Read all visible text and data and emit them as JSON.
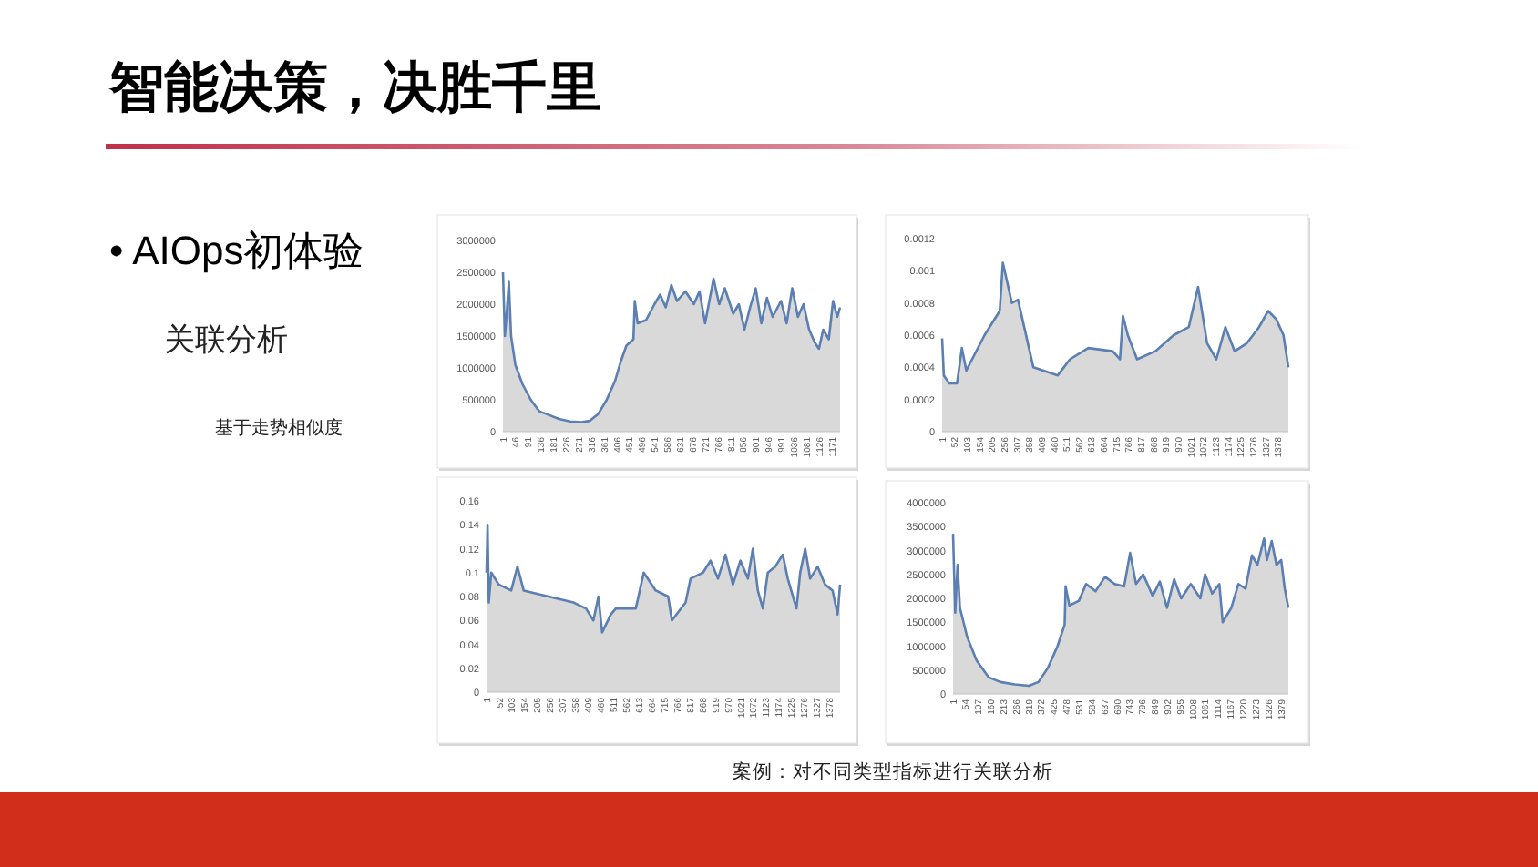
{
  "chart_data": [
    {
      "type": "other",
      "title": "智能决策，决胜千里",
      "annotations": [
        "• AIOps初体验",
        "关联分析",
        "基于走势相似度",
        "案例：对不同类型指标进行关联分析"
      ]
    },
    {
      "type": "area",
      "color": "#5b7fb2",
      "x": [
        1,
        8,
        15,
        22,
        30,
        45,
        70,
        100,
        130,
        160,
        200,
        240,
        280,
        310,
        340,
        370,
        400,
        420,
        440,
        465,
        470,
        480,
        510,
        540,
        560,
        580,
        600,
        620,
        650,
        680,
        700,
        720,
        750,
        770,
        790,
        820,
        840,
        860,
        880,
        900,
        920,
        940,
        960,
        990,
        1010,
        1030,
        1050,
        1070,
        1090,
        1110,
        1125,
        1140,
        1160,
        1175,
        1190,
        1200
      ],
      "values": [
        2500000,
        1500000,
        1900000,
        2350000,
        1500000,
        1050000,
        750000,
        500000,
        320000,
        270000,
        200000,
        160000,
        150000,
        170000,
        280000,
        500000,
        800000,
        1100000,
        1350000,
        1450000,
        2050000,
        1700000,
        1750000,
        2000000,
        2150000,
        1950000,
        2300000,
        2050000,
        2200000,
        2000000,
        2200000,
        1700000,
        2400000,
        2000000,
        2250000,
        1850000,
        2000000,
        1600000,
        1950000,
        2250000,
        1700000,
        2100000,
        1800000,
        2050000,
        1700000,
        2250000,
        1800000,
        2000000,
        1600000,
        1400000,
        1300000,
        1600000,
        1450000,
        2050000,
        1800000,
        1950000
      ],
      "xlim": [
        1,
        1200
      ],
      "xticks": [
        1,
        46,
        91,
        136,
        181,
        226,
        271,
        316,
        361,
        406,
        451,
        496,
        541,
        586,
        631,
        676,
        721,
        766,
        811,
        856,
        901,
        946,
        991,
        1036,
        1081,
        1126,
        1171
      ],
      "ylim": [
        0,
        3000000
      ],
      "yticks": [
        0,
        500000,
        1000000,
        1500000,
        2000000,
        2500000,
        3000000
      ]
    },
    {
      "type": "area",
      "color": "#5b7fb2",
      "x": [
        1,
        8,
        30,
        62,
        82,
        100,
        175,
        237,
        250,
        287,
        312,
        375,
        475,
        525,
        600,
        700,
        730,
        742,
        762,
        800,
        875,
        950,
        1012,
        1050,
        1087,
        1125,
        1162,
        1200,
        1250,
        1300,
        1337,
        1370,
        1400,
        1420
      ],
      "values": [
        0.00058,
        0.00035,
        0.0003,
        0.0003,
        0.00052,
        0.00038,
        0.0006,
        0.00075,
        0.00105,
        0.0008,
        0.00082,
        0.0004,
        0.00035,
        0.00045,
        0.00052,
        0.0005,
        0.00045,
        0.00072,
        0.0006,
        0.00045,
        0.0005,
        0.0006,
        0.00065,
        0.0009,
        0.00055,
        0.00045,
        0.00065,
        0.0005,
        0.00055,
        0.00065,
        0.00075,
        0.0007,
        0.0006,
        0.0004
      ],
      "xlim": [
        1,
        1420
      ],
      "xticks": [
        1,
        52,
        103,
        154,
        205,
        256,
        307,
        358,
        409,
        460,
        511,
        562,
        613,
        664,
        715,
        766,
        817,
        868,
        919,
        970,
        1021,
        1072,
        1123,
        1174,
        1225,
        1276,
        1327,
        1378
      ],
      "ylim": [
        0,
        0.0012
      ],
      "yticks": [
        0,
        0.0002,
        0.0004,
        0.0006,
        0.0008,
        0.001,
        0.0012
      ]
    },
    {
      "type": "area",
      "color": "#5b7fb2",
      "x": [
        1,
        5,
        10,
        20,
        50,
        100,
        125,
        150,
        250,
        350,
        400,
        430,
        450,
        465,
        500,
        520,
        600,
        632,
        680,
        730,
        745,
        800,
        820,
        870,
        900,
        930,
        960,
        990,
        1020,
        1050,
        1070,
        1090,
        1110,
        1130,
        1160,
        1190,
        1210,
        1245,
        1260,
        1280,
        1300,
        1330,
        1360,
        1390,
        1410,
        1420
      ],
      "values": [
        0.1,
        0.14,
        0.075,
        0.1,
        0.09,
        0.085,
        0.105,
        0.085,
        0.08,
        0.075,
        0.07,
        0.06,
        0.08,
        0.05,
        0.065,
        0.07,
        0.07,
        0.1,
        0.085,
        0.08,
        0.06,
        0.075,
        0.095,
        0.1,
        0.11,
        0.095,
        0.115,
        0.09,
        0.11,
        0.095,
        0.12,
        0.085,
        0.07,
        0.1,
        0.105,
        0.115,
        0.095,
        0.07,
        0.1,
        0.12,
        0.095,
        0.105,
        0.09,
        0.085,
        0.065,
        0.09
      ],
      "xlim": [
        1,
        1420
      ],
      "xticks": [
        1,
        52,
        103,
        154,
        205,
        256,
        307,
        358,
        409,
        460,
        511,
        562,
        613,
        664,
        715,
        766,
        817,
        868,
        919,
        970,
        1021,
        1072,
        1123,
        1174,
        1225,
        1276,
        1327,
        1378
      ],
      "ylim": [
        0,
        0.16
      ],
      "yticks": [
        0,
        0.02,
        0.04,
        0.06,
        0.08,
        0.1,
        0.12,
        0.14,
        0.16
      ]
    },
    {
      "type": "area",
      "color": "#5b7fb2",
      "x": [
        1,
        10,
        20,
        30,
        60,
        100,
        150,
        200,
        260,
        320,
        360,
        400,
        440,
        470,
        474,
        490,
        530,
        560,
        600,
        640,
        680,
        720,
        745,
        770,
        800,
        840,
        870,
        900,
        930,
        960,
        1000,
        1040,
        1060,
        1090,
        1120,
        1134,
        1170,
        1200,
        1230,
        1257,
        1280,
        1308,
        1320,
        1340,
        1360,
        1380,
        1395,
        1410
      ],
      "values": [
        3350000,
        1700000,
        2700000,
        1800000,
        1200000,
        700000,
        350000,
        250000,
        200000,
        170000,
        250000,
        550000,
        1000000,
        1450000,
        2250000,
        1850000,
        1950000,
        2300000,
        2150000,
        2450000,
        2300000,
        2250000,
        2950000,
        2300000,
        2500000,
        2050000,
        2350000,
        1800000,
        2400000,
        2000000,
        2300000,
        2000000,
        2500000,
        2100000,
        2300000,
        1500000,
        1800000,
        2300000,
        2200000,
        2900000,
        2700000,
        3250000,
        2800000,
        3200000,
        2700000,
        2800000,
        2200000,
        1800000
      ],
      "xlim": [
        1,
        1410
      ],
      "xticks": [
        1,
        54,
        107,
        160,
        213,
        266,
        319,
        372,
        425,
        478,
        531,
        584,
        637,
        690,
        743,
        796,
        849,
        902,
        955,
        1008,
        1061,
        1114,
        1167,
        1220,
        1273,
        1326,
        1379
      ],
      "ylim": [
        0,
        4000000
      ],
      "yticks": [
        0,
        500000,
        1000000,
        1500000,
        2000000,
        2500000,
        3000000,
        3500000,
        4000000
      ]
    }
  ]
}
